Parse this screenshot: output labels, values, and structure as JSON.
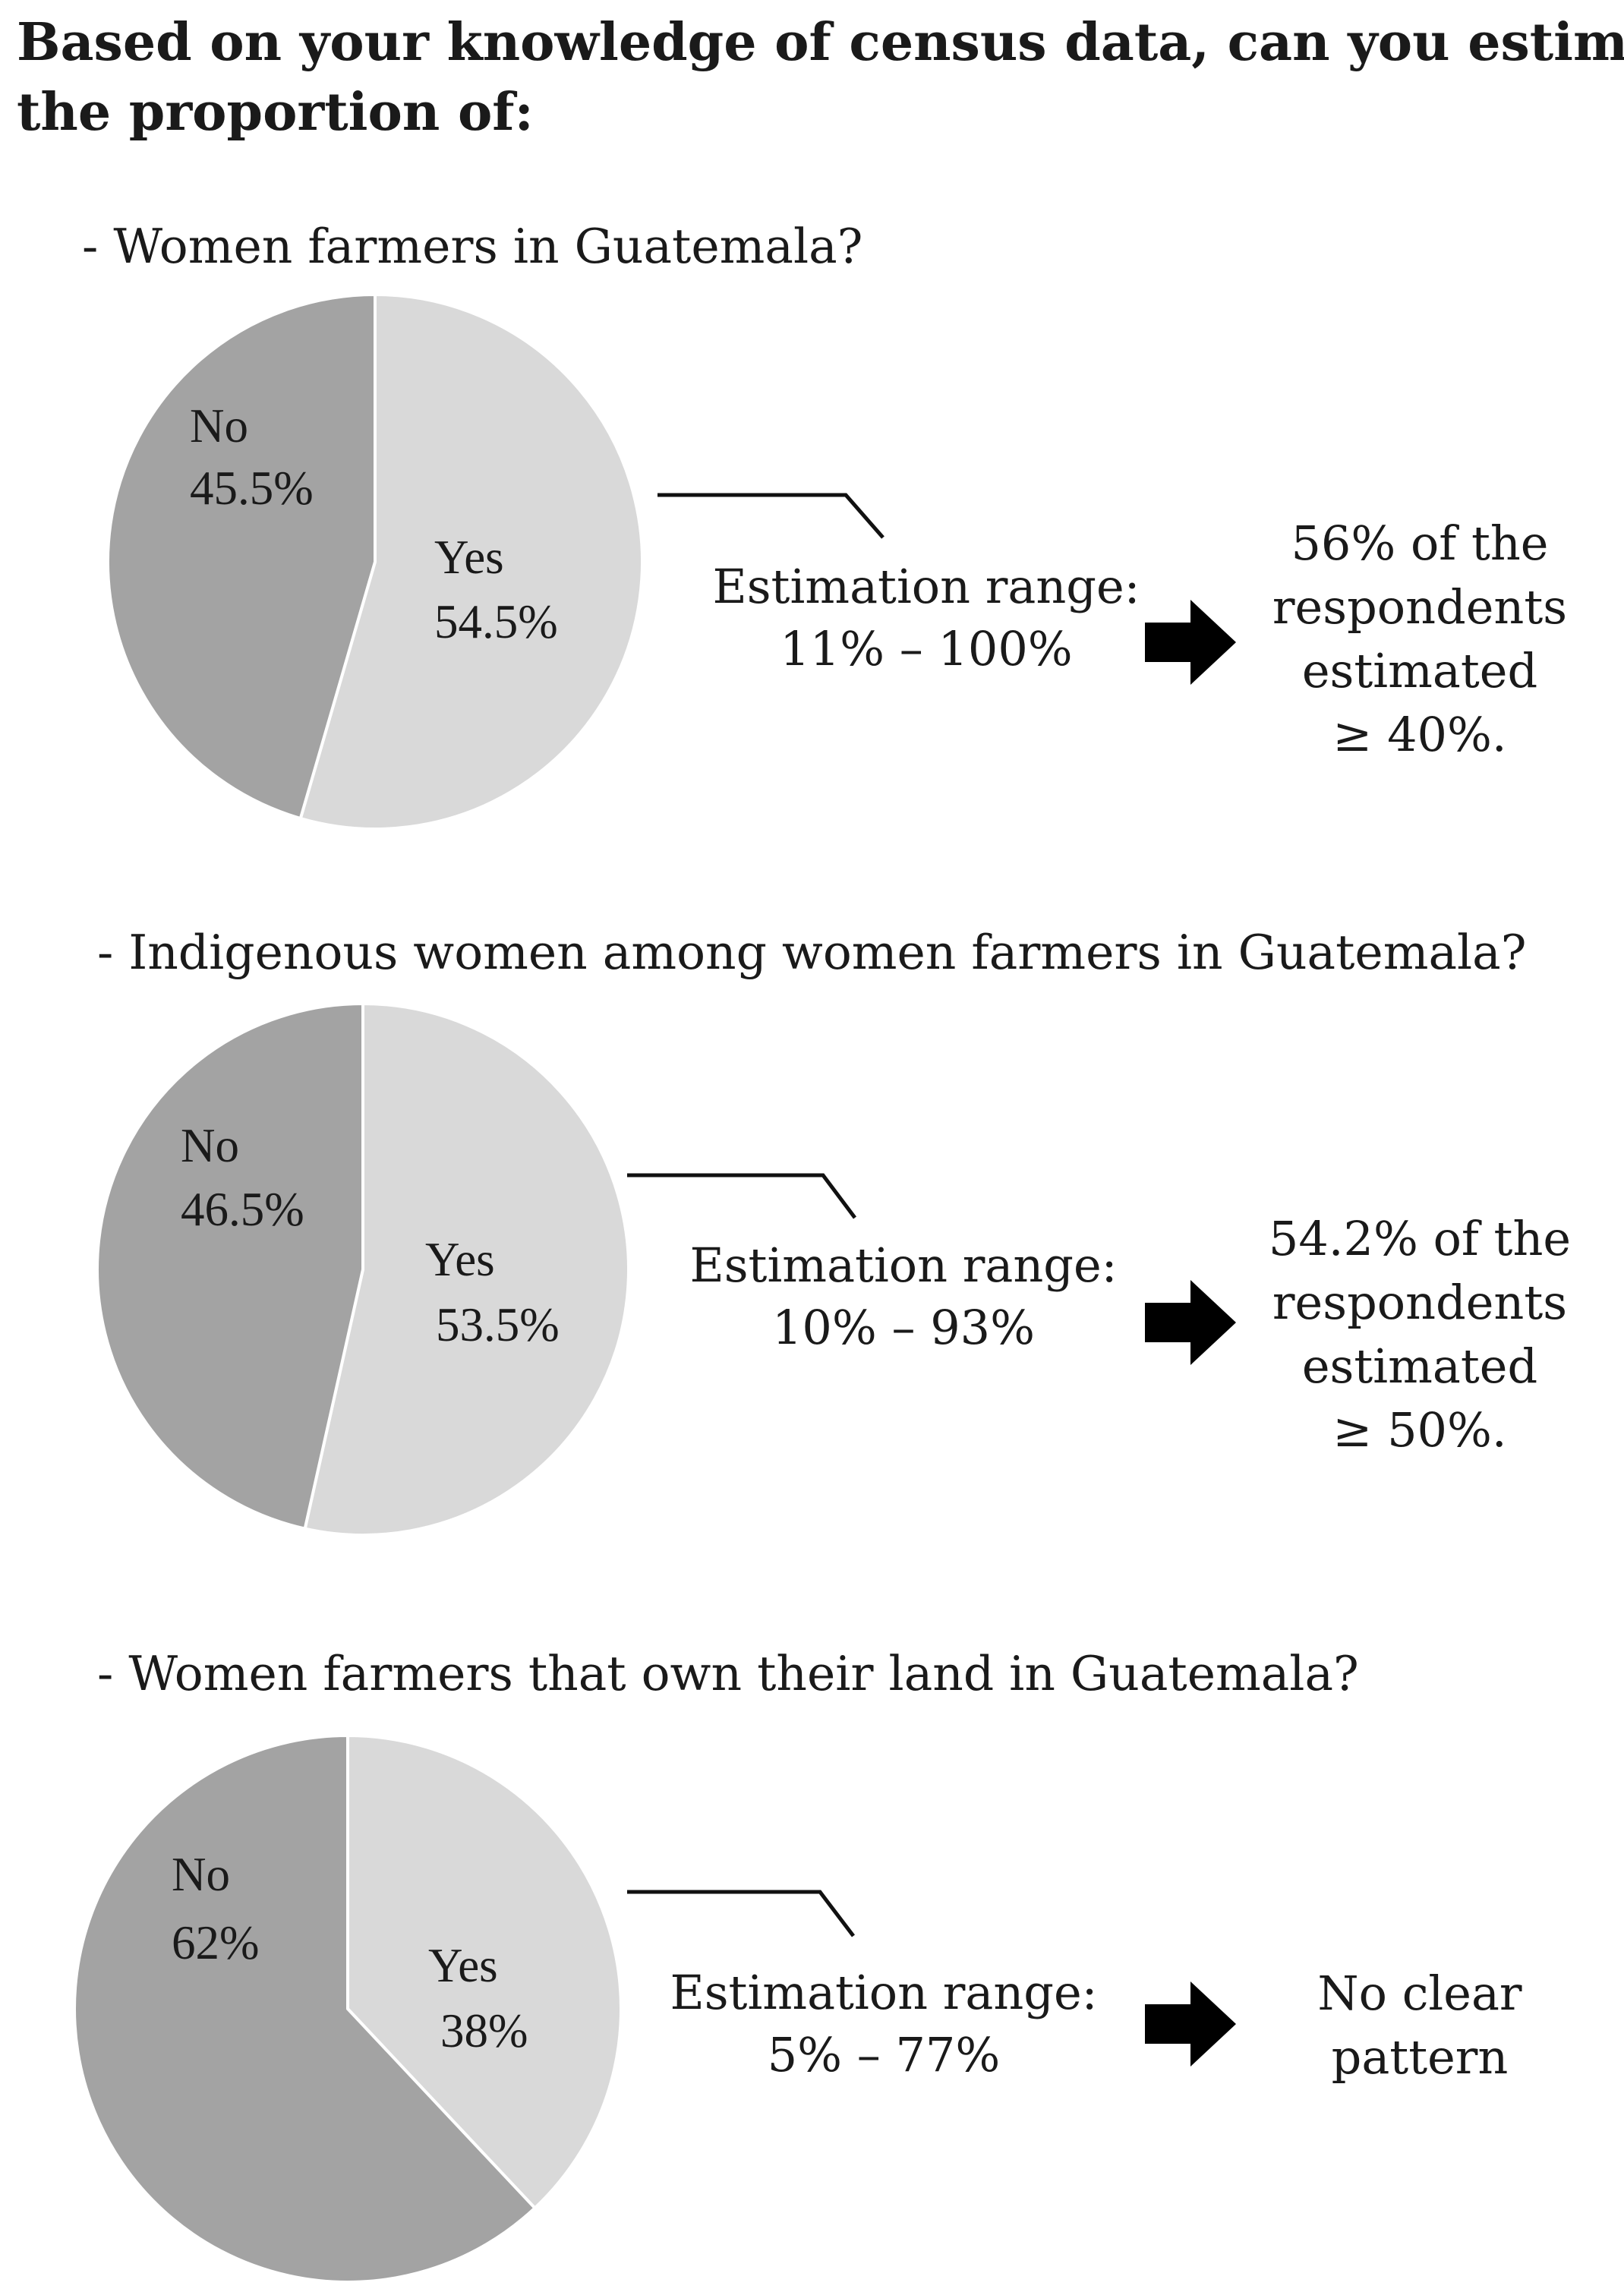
{
  "title_lines": [
    "Based on your knowledge of census data, can you estimate",
    "the proportion of:"
  ],
  "colors": {
    "no": "#a3a3a3",
    "yes": "#d9d9d9",
    "slice_border": "#ffffff",
    "arrow": "#000000"
  },
  "chart_data": [
    {
      "type": "pie",
      "question": "- Women farmers in Guatemala?",
      "slices": [
        {
          "label": "Yes",
          "value": 54.5,
          "value_label": "54.5%"
        },
        {
          "label": "No",
          "value": 45.5,
          "value_label": "45.5%"
        }
      ],
      "estimation": {
        "label": "Estimation range:",
        "range": "11% – 100%"
      },
      "result_lines": [
        "56% of the",
        "respondents",
        "estimated",
        "≥ 40%."
      ]
    },
    {
      "type": "pie",
      "question": "- Indigenous women among women farmers in Guatemala?",
      "slices": [
        {
          "label": "Yes",
          "value": 53.5,
          "value_label": "53.5%"
        },
        {
          "label": "No",
          "value": 46.5,
          "value_label": "46.5%"
        }
      ],
      "estimation": {
        "label": "Estimation range:",
        "range": "10% – 93%"
      },
      "result_lines": [
        "54.2% of the",
        "respondents",
        "estimated",
        "≥ 50%."
      ]
    },
    {
      "type": "pie",
      "question": "- Women farmers that own their land in Guatemala?",
      "slices": [
        {
          "label": "Yes",
          "value": 38,
          "value_label": "38%"
        },
        {
          "label": "No",
          "value": 62,
          "value_label": "62%"
        }
      ],
      "estimation": {
        "label": "Estimation range:",
        "range": "5% – 77%"
      },
      "result_lines": [
        "No clear",
        "pattern"
      ]
    }
  ]
}
